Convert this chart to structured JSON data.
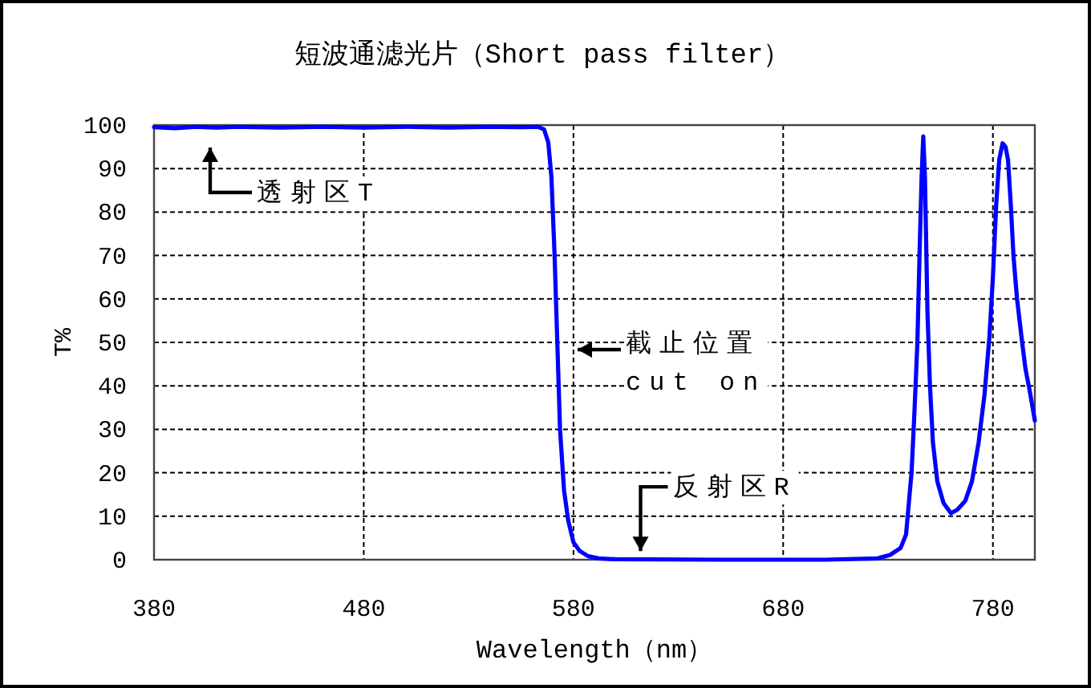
{
  "chart_data": {
    "type": "line",
    "title": "短波通滤光片（Short pass filter）",
    "xlabel": "Wavelength（nm）",
    "ylabel": "T%",
    "xlim": [
      380,
      800
    ],
    "xticks": [
      380,
      480,
      580,
      680,
      780
    ],
    "ylim": [
      0,
      100
    ],
    "yticks": [
      0,
      10,
      20,
      30,
      40,
      50,
      60,
      70,
      80,
      90,
      100
    ],
    "grid": true,
    "line_style": "solid",
    "marker": "none",
    "series": [
      {
        "color": "#0000ff",
        "x": [
          380,
          390,
          400,
          410,
          420,
          440,
          460,
          480,
          500,
          520,
          540,
          555,
          563,
          566,
          568,
          569.5,
          571,
          572.3,
          573.6,
          575.5,
          577.5,
          580,
          583,
          587,
          592,
          600,
          650,
          700,
          725,
          731,
          736,
          738.6,
          741.2,
          742.5,
          744,
          745,
          746,
          746.8,
          747.6,
          748.8,
          750,
          751.4,
          753.5,
          756.5,
          760,
          763,
          766.8,
          770,
          773.2,
          776,
          778.3,
          780,
          781.6,
          783,
          784.6,
          786,
          787.2,
          788.5,
          789.8,
          791.5,
          793.7,
          795.5,
          797.5,
          800
        ],
        "values": [
          99.5,
          99.3,
          99.6,
          99.4,
          99.6,
          99.4,
          99.6,
          99.4,
          99.6,
          99.4,
          99.6,
          99.5,
          99.6,
          99,
          96,
          88,
          70,
          50,
          30,
          16,
          9,
          4,
          2,
          0.8,
          0.3,
          0.1,
          0,
          0,
          0.3,
          1.1,
          2.7,
          5.8,
          20,
          33,
          50,
          70,
          88,
          97.4,
          88,
          57,
          40,
          27,
          18,
          13,
          10.7,
          11.5,
          13.5,
          18,
          27,
          38,
          51,
          65,
          82,
          92,
          95.8,
          95,
          92,
          82,
          70,
          60,
          51,
          44,
          39,
          32
        ]
      }
    ],
    "annotations": [
      "透射区T",
      "截止位置\ncut on",
      {
        "text": "反射区R",
        "x": 612,
        "y": 2
      }
    ]
  }
}
